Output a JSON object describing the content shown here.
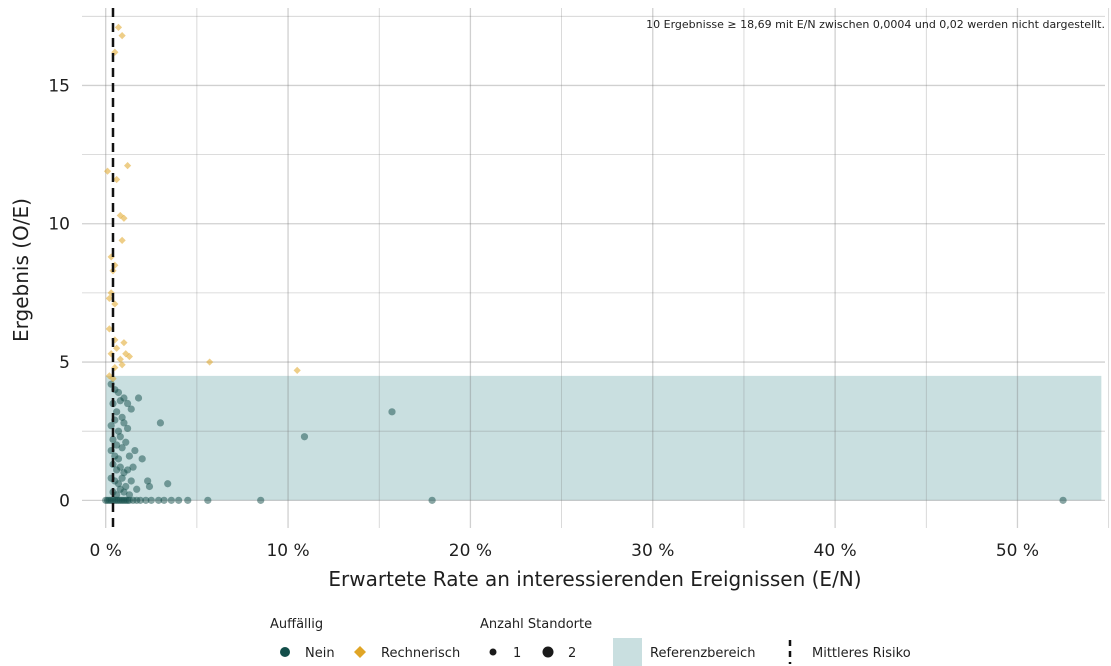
{
  "chart_data": {
    "type": "scatter",
    "title": "",
    "xlabel": "Erwartete Rate an interessierenden Ereignissen (E/N)",
    "ylabel": "Ergebnis (O/E)",
    "annotation": "10 Ergebnisse ≥ 18,69 mit E/N zwischen 0,0004 und 0,02 werden nicht dargestellt.",
    "x_unit": "%",
    "xlim": [
      -1.3,
      54.8
    ],
    "ylim": [
      -1.0,
      17.8
    ],
    "x_ticks": [
      0,
      10,
      20,
      30,
      40,
      50
    ],
    "x_tick_labels": [
      "0 %",
      "10 %",
      "20 %",
      "30 %",
      "40 %",
      "50 %"
    ],
    "y_ticks": [
      0,
      5,
      10,
      15
    ],
    "y_tick_labels": [
      "0",
      "5",
      "10",
      "15"
    ],
    "grid": true,
    "reference_area": {
      "x": [
        0,
        54.6
      ],
      "y": [
        0,
        4.5
      ],
      "color": "#c9dfe0"
    },
    "mean_risk_x": 0.4,
    "legend_position": "bottom",
    "legend": {
      "color_title": "Auffällig",
      "color_items": [
        {
          "label": "Nein",
          "color": "#134e4a",
          "shape": "circle"
        },
        {
          "label": "Rechnerisch",
          "color": "#e0a526",
          "shape": "diamond"
        }
      ],
      "size_title": "Anzahl Standorte",
      "size_items": [
        {
          "label": "1",
          "radius": 3.5
        },
        {
          "label": "2",
          "radius": 5.5
        }
      ],
      "reference_label": "Referenzbereich",
      "mean_label": "Mittleres Risiko"
    },
    "series": [
      {
        "name": "Nein",
        "color": "#134e4a",
        "points": [
          [
            0.0,
            0
          ],
          [
            0.1,
            0
          ],
          [
            0.2,
            0
          ],
          [
            0.3,
            0
          ],
          [
            0.4,
            0
          ],
          [
            0.5,
            0
          ],
          [
            0.6,
            0
          ],
          [
            0.7,
            0
          ],
          [
            0.8,
            0
          ],
          [
            0.9,
            0
          ],
          [
            1.0,
            0
          ],
          [
            1.1,
            0
          ],
          [
            1.2,
            0
          ],
          [
            1.3,
            0
          ],
          [
            1.5,
            0
          ],
          [
            1.7,
            0
          ],
          [
            1.9,
            0
          ],
          [
            2.2,
            0
          ],
          [
            2.5,
            0
          ],
          [
            2.9,
            0
          ],
          [
            3.2,
            0
          ],
          [
            3.6,
            0
          ],
          [
            4.0,
            0
          ],
          [
            4.5,
            0
          ],
          [
            5.6,
            0
          ],
          [
            8.5,
            0
          ],
          [
            17.9,
            0
          ],
          [
            52.5,
            0
          ],
          [
            0.3,
            4.2
          ],
          [
            0.5,
            4.0
          ],
          [
            0.7,
            3.9
          ],
          [
            0.4,
            3.5
          ],
          [
            0.6,
            3.2
          ],
          [
            0.8,
            3.6
          ],
          [
            0.9,
            3.0
          ],
          [
            1.0,
            3.7
          ],
          [
            1.2,
            3.5
          ],
          [
            1.4,
            3.3
          ],
          [
            1.8,
            3.7
          ],
          [
            0.3,
            2.7
          ],
          [
            0.5,
            2.9
          ],
          [
            0.7,
            2.5
          ],
          [
            1.0,
            2.8
          ],
          [
            1.2,
            2.6
          ],
          [
            0.4,
            2.2
          ],
          [
            0.6,
            2.0
          ],
          [
            0.8,
            2.3
          ],
          [
            1.1,
            2.1
          ],
          [
            0.3,
            1.8
          ],
          [
            0.5,
            1.6
          ],
          [
            0.7,
            1.5
          ],
          [
            0.9,
            1.9
          ],
          [
            1.3,
            1.6
          ],
          [
            1.6,
            1.8
          ],
          [
            2.0,
            1.5
          ],
          [
            0.4,
            1.3
          ],
          [
            0.6,
            1.1
          ],
          [
            0.8,
            1.2
          ],
          [
            1.0,
            1.0
          ],
          [
            1.2,
            1.1
          ],
          [
            1.5,
            1.2
          ],
          [
            0.3,
            0.8
          ],
          [
            0.5,
            0.7
          ],
          [
            0.7,
            0.6
          ],
          [
            0.9,
            0.8
          ],
          [
            1.1,
            0.5
          ],
          [
            1.4,
            0.7
          ],
          [
            1.7,
            0.4
          ],
          [
            2.3,
            0.7
          ],
          [
            2.4,
            0.5
          ],
          [
            3.4,
            0.6
          ],
          [
            0.4,
            0.3
          ],
          [
            0.6,
            0.2
          ],
          [
            0.8,
            0.4
          ],
          [
            1.0,
            0.3
          ],
          [
            1.3,
            0.2
          ],
          [
            3.0,
            2.8
          ],
          [
            10.9,
            2.3
          ],
          [
            15.7,
            3.2
          ]
        ]
      },
      {
        "name": "Rechnerisch",
        "color": "#e0a526",
        "points": [
          [
            0.7,
            17.1
          ],
          [
            0.9,
            16.8
          ],
          [
            0.5,
            16.2
          ],
          [
            1.2,
            12.1
          ],
          [
            0.1,
            11.9
          ],
          [
            0.6,
            11.6
          ],
          [
            0.8,
            10.3
          ],
          [
            1.0,
            10.2
          ],
          [
            0.9,
            9.4
          ],
          [
            0.3,
            8.8
          ],
          [
            0.5,
            8.5
          ],
          [
            0.4,
            8.3
          ],
          [
            0.3,
            7.5
          ],
          [
            0.2,
            7.3
          ],
          [
            0.5,
            7.1
          ],
          [
            0.2,
            6.2
          ],
          [
            0.5,
            5.8
          ],
          [
            1.0,
            5.7
          ],
          [
            0.6,
            5.5
          ],
          [
            0.3,
            5.3
          ],
          [
            1.1,
            5.3
          ],
          [
            1.3,
            5.2
          ],
          [
            0.8,
            5.1
          ],
          [
            0.5,
            4.8
          ],
          [
            0.9,
            4.9
          ],
          [
            0.2,
            4.5
          ],
          [
            0.4,
            4.4
          ],
          [
            5.7,
            5.0
          ],
          [
            10.5,
            4.7
          ]
        ]
      }
    ]
  }
}
